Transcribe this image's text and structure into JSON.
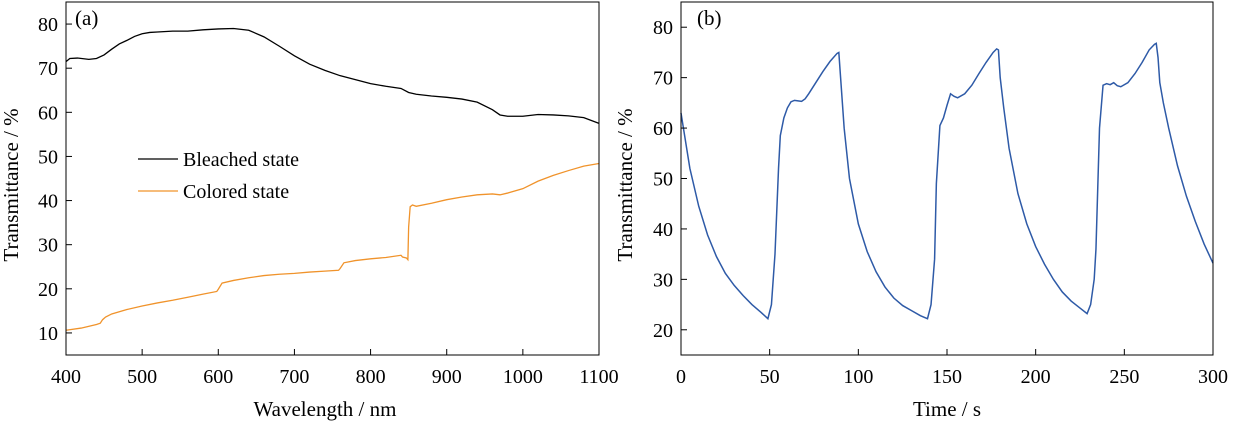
{
  "chart_data": [
    {
      "panel_label": "(a)",
      "type": "line",
      "xlabel": "Wavelength / nm",
      "ylabel": "Transmittance / %",
      "xlim": [
        400,
        1100
      ],
      "ylim": [
        5,
        85
      ],
      "xticks": [
        400,
        500,
        600,
        700,
        800,
        900,
        1000,
        1100
      ],
      "yticks": [
        10,
        20,
        30,
        40,
        50,
        60,
        70,
        80
      ],
      "grid": false,
      "legend_position": "center-left",
      "series": [
        {
          "name": "Bleached state",
          "color": "#000000",
          "x": [
            400,
            405,
            415,
            430,
            440,
            450,
            460,
            470,
            480,
            490,
            500,
            510,
            520,
            540,
            560,
            580,
            600,
            620,
            640,
            660,
            680,
            700,
            720,
            740,
            760,
            780,
            800,
            820,
            840,
            850,
            860,
            880,
            900,
            920,
            940,
            960,
            970,
            980,
            1000,
            1020,
            1040,
            1060,
            1080,
            1100
          ],
          "y": [
            71.5,
            72.2,
            72.3,
            72.0,
            72.2,
            73.0,
            74.3,
            75.5,
            76.3,
            77.2,
            77.8,
            78.1,
            78.2,
            78.4,
            78.4,
            78.7,
            78.9,
            79.0,
            78.6,
            77.1,
            75.0,
            72.8,
            70.9,
            69.5,
            68.3,
            67.4,
            66.5,
            65.9,
            65.4,
            64.5,
            64.1,
            63.7,
            63.4,
            63.0,
            62.3,
            60.6,
            59.4,
            59.1,
            59.1,
            59.5,
            59.4,
            59.2,
            58.8,
            57.5
          ]
        },
        {
          "name": "Colored state",
          "color": "#F0932B",
          "x": [
            400,
            420,
            440,
            445,
            448,
            452,
            460,
            480,
            500,
            520,
            540,
            560,
            580,
            598,
            600,
            605,
            620,
            640,
            660,
            680,
            700,
            720,
            740,
            758,
            760,
            765,
            780,
            800,
            820,
            840,
            842,
            847,
            849,
            850,
            852,
            855,
            860,
            880,
            900,
            920,
            940,
            960,
            970,
            980,
            1000,
            1020,
            1040,
            1060,
            1080,
            1100
          ],
          "y": [
            10.6,
            11.1,
            11.9,
            12.2,
            13.0,
            13.6,
            14.3,
            15.3,
            16.1,
            16.8,
            17.4,
            18.1,
            18.8,
            19.4,
            19.9,
            21.3,
            21.9,
            22.5,
            23.0,
            23.3,
            23.5,
            23.8,
            24.0,
            24.2,
            24.6,
            25.9,
            26.4,
            26.8,
            27.1,
            27.6,
            27.2,
            27.0,
            26.6,
            34.0,
            38.6,
            39.0,
            38.7,
            39.4,
            40.2,
            40.8,
            41.3,
            41.5,
            41.3,
            41.7,
            42.7,
            44.4,
            45.7,
            46.8,
            47.8,
            48.4
          ]
        }
      ]
    },
    {
      "panel_label": "(b)",
      "type": "line",
      "xlabel": "Time / s",
      "ylabel": "Transmittance / %",
      "xlim": [
        0,
        300
      ],
      "ylim": [
        15,
        85
      ],
      "xticks": [
        0,
        50,
        100,
        150,
        200,
        250,
        300
      ],
      "yticks": [
        20,
        30,
        40,
        50,
        60,
        70,
        80
      ],
      "grid": false,
      "series": [
        {
          "color": "#2E5AA7",
          "x": [
            0,
            5,
            10,
            15,
            20,
            25,
            30,
            35,
            40,
            45,
            49,
            51,
            53,
            55,
            56,
            58,
            60,
            62,
            64,
            66,
            68,
            70,
            72,
            76,
            80,
            84,
            88,
            89,
            90,
            92,
            95,
            100,
            105,
            110,
            115,
            120,
            125,
            130,
            135,
            139,
            141,
            143,
            144,
            146,
            148,
            150,
            152,
            154,
            156,
            160,
            164,
            168,
            172,
            176,
            178,
            179,
            180,
            182,
            185,
            190,
            195,
            200,
            205,
            210,
            215,
            220,
            225,
            229,
            231,
            233,
            234,
            235,
            236,
            238,
            240,
            242,
            244,
            246,
            248,
            252,
            256,
            260,
            264,
            267,
            268,
            269,
            270,
            272,
            275,
            280,
            285,
            290,
            295,
            300
          ],
          "y": [
            63.0,
            52.0,
            44.5,
            38.8,
            34.5,
            31.2,
            28.8,
            26.8,
            25.0,
            23.5,
            22.2,
            25.0,
            35.0,
            52.0,
            58.5,
            62.0,
            64.0,
            65.2,
            65.5,
            65.4,
            65.3,
            65.8,
            66.8,
            69.0,
            71.2,
            73.2,
            74.8,
            75.0,
            70.0,
            60.0,
            50.0,
            41.0,
            35.5,
            31.5,
            28.5,
            26.3,
            24.8,
            23.8,
            22.8,
            22.2,
            25.0,
            34.0,
            49.0,
            60.5,
            62.0,
            64.5,
            66.8,
            66.3,
            66.0,
            66.8,
            68.5,
            70.8,
            73.0,
            75.0,
            75.7,
            75.5,
            70.0,
            64.0,
            56.0,
            47.0,
            41.0,
            36.5,
            33.0,
            30.0,
            27.5,
            25.7,
            24.3,
            23.2,
            25.0,
            30.0,
            36.0,
            48.0,
            60.0,
            68.5,
            68.8,
            68.6,
            69.0,
            68.4,
            68.2,
            69.0,
            70.8,
            73.0,
            75.5,
            76.6,
            76.8,
            74.0,
            69.0,
            65.0,
            60.0,
            52.5,
            46.5,
            41.5,
            37.0,
            33.2
          ]
        }
      ]
    }
  ]
}
